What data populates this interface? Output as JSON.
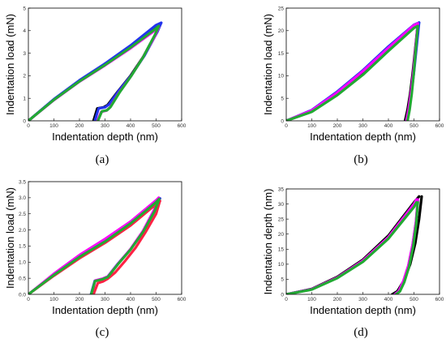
{
  "figure": {
    "panels": [
      {
        "label": "(a)"
      },
      {
        "label": "(b)"
      },
      {
        "label": "(c)"
      },
      {
        "label": "(d)"
      }
    ]
  },
  "chart_data": [
    {
      "type": "line",
      "panel_label": "(a)",
      "xlabel": "Indentation depth (nm)",
      "ylabel": "Indentation load (mN)",
      "xlim": [
        0,
        600
      ],
      "ylim": [
        0,
        5
      ],
      "xticks": [
        0,
        100,
        200,
        300,
        400,
        500,
        600
      ],
      "yticks": [
        0,
        1,
        2,
        3,
        4,
        5
      ],
      "grid": false,
      "series": [
        {
          "color": "#000000",
          "loading": {
            "x": [
              0,
              100,
              200,
              300,
              400,
              500,
              515
            ],
            "y": [
              0,
              0.95,
              1.78,
              2.52,
              3.32,
              4.2,
              4.3
            ]
          },
          "unloading": {
            "x": [
              515,
              500,
              450,
              400,
              350,
              310,
              295,
              270,
              255
            ],
            "y": [
              4.3,
              3.9,
              2.85,
              2.0,
              1.3,
              0.7,
              0.6,
              0.55,
              0
            ]
          }
        },
        {
          "color": "#2233ee",
          "loading": {
            "x": [
              0,
              100,
              200,
              300,
              400,
              500,
              520
            ],
            "y": [
              0,
              0.96,
              1.8,
              2.54,
              3.34,
              4.25,
              4.35
            ]
          },
          "unloading": {
            "x": [
              520,
              505,
              455,
              405,
              355,
              315,
              300,
              275,
              260
            ],
            "y": [
              4.35,
              3.95,
              2.9,
              2.05,
              1.35,
              0.72,
              0.6,
              0.55,
              0
            ]
          }
        },
        {
          "color": "#ff00ff",
          "loading": {
            "x": [
              0,
              100,
              200,
              300,
              400,
              500,
              510
            ],
            "y": [
              0,
              0.92,
              1.74,
              2.46,
              3.22,
              4.05,
              4.15
            ]
          },
          "unloading": {
            "x": [
              510,
              495,
              445,
              400,
              355,
              320,
              305,
              285,
              270
            ],
            "y": [
              4.15,
              3.75,
              2.75,
              1.95,
              1.25,
              0.6,
              0.45,
              0.4,
              0
            ]
          }
        },
        {
          "color": "#22aa33",
          "loading": {
            "x": [
              0,
              100,
              200,
              300,
              400,
              500,
              510
            ],
            "y": [
              0,
              0.93,
              1.75,
              2.48,
              3.25,
              4.1,
              4.2
            ]
          },
          "unloading": {
            "x": [
              510,
              495,
              448,
              402,
              358,
              322,
              308,
              288,
              272
            ],
            "y": [
              4.2,
              3.8,
              2.8,
              1.98,
              1.28,
              0.62,
              0.47,
              0.42,
              0
            ]
          }
        }
      ]
    },
    {
      "type": "line",
      "panel_label": "(b)",
      "xlabel": "Indentation depth (nm)",
      "ylabel": "Indentation load (mN)",
      "xlim": [
        0,
        600
      ],
      "ylim": [
        0,
        25
      ],
      "xticks": [
        0,
        100,
        200,
        300,
        400,
        500,
        600
      ],
      "yticks": [
        0,
        5,
        10,
        15,
        20,
        25
      ],
      "grid": false,
      "series": [
        {
          "color": "#000000",
          "loading": {
            "x": [
              0,
              100,
              200,
              300,
              400,
              500,
              515
            ],
            "y": [
              0,
              2.2,
              6.0,
              10.5,
              15.8,
              21.0,
              21.5
            ]
          },
          "unloading": {
            "x": [
              515,
              505,
              495,
              485,
              475,
              465
            ],
            "y": [
              21.5,
              16.0,
              10.5,
              6.0,
              2.5,
              0
            ]
          }
        },
        {
          "color": "#2233ee",
          "loading": {
            "x": [
              0,
              100,
              200,
              300,
              400,
              500,
              520
            ],
            "y": [
              0,
              2.4,
              6.5,
              11.2,
              16.5,
              21.3,
              21.8
            ]
          },
          "unloading": {
            "x": [
              520,
              510,
              500,
              490,
              480,
              470
            ],
            "y": [
              21.8,
              16.2,
              10.8,
              6.2,
              2.6,
              0
            ]
          }
        },
        {
          "color": "#ff00ff",
          "loading": {
            "x": [
              0,
              100,
              200,
              300,
              400,
              500,
              515
            ],
            "y": [
              0,
              2.3,
              6.3,
              11.0,
              16.2,
              21.2,
              21.6
            ]
          },
          "unloading": {
            "x": [
              515,
              506,
              497,
              488,
              479,
              470
            ],
            "y": [
              21.6,
              16.0,
              10.6,
              6.1,
              2.6,
              0
            ]
          }
        },
        {
          "color": "#22aa33",
          "loading": {
            "x": [
              0,
              100,
              200,
              300,
              400,
              500,
              515
            ],
            "y": [
              0,
              2.0,
              5.7,
              10.2,
              15.5,
              20.6,
              21.0
            ]
          },
          "unloading": {
            "x": [
              515,
              507,
              499,
              491,
              483,
              475
            ],
            "y": [
              21.0,
              15.8,
              10.4,
              5.9,
              2.4,
              0
            ]
          }
        }
      ]
    },
    {
      "type": "line",
      "panel_label": "(c)",
      "xlabel": "Indentation depth (nm)",
      "ylabel": "Indentation load (mN)",
      "xlim": [
        0,
        600
      ],
      "ylim": [
        0,
        3.5
      ],
      "xticks": [
        0,
        100,
        200,
        300,
        400,
        500,
        600
      ],
      "yticks": [
        0,
        0.5,
        1.0,
        1.5,
        2.0,
        2.5,
        3.0,
        3.5
      ],
      "grid": false,
      "series": [
        {
          "color": "#2233ee",
          "loading": {
            "x": [
              0,
              100,
              200,
              300,
              400,
              500,
              515
            ],
            "y": [
              0,
              0.62,
              1.18,
              1.66,
              2.22,
              2.88,
              2.98
            ]
          },
          "unloading": {
            "x": [
              515,
              495,
              450,
              400,
              350,
              310,
              290,
              260,
              245
            ],
            "y": [
              2.98,
              2.6,
              1.95,
              1.4,
              0.95,
              0.55,
              0.48,
              0.42,
              0
            ]
          }
        },
        {
          "color": "#ff00ff",
          "loading": {
            "x": [
              0,
              100,
              200,
              300,
              400,
              500,
              510
            ],
            "y": [
              0,
              0.64,
              1.22,
              1.72,
              2.26,
              2.92,
              3.0
            ]
          },
          "unloading": {
            "x": [
              510,
              492,
              448,
              400,
              352,
              312,
              292,
              262,
              248
            ],
            "y": [
              3.0,
              2.62,
              1.96,
              1.41,
              0.96,
              0.56,
              0.49,
              0.43,
              0
            ]
          }
        },
        {
          "color": "#ff2244",
          "loading": {
            "x": [
              0,
              100,
              200,
              300,
              400,
              500,
              515
            ],
            "y": [
              0,
              0.58,
              1.12,
              1.6,
              2.14,
              2.8,
              2.9
            ]
          },
          "unloading": {
            "x": [
              515,
              500,
              460,
              420,
              380,
              340,
              310,
              292,
              272,
              255
            ],
            "y": [
              2.9,
              2.5,
              1.95,
              1.45,
              1.05,
              0.68,
              0.48,
              0.4,
              0.35,
              0
            ]
          }
        },
        {
          "color": "#22aa33",
          "loading": {
            "x": [
              0,
              100,
              200,
              300,
              400,
              500,
              512
            ],
            "y": [
              0,
              0.6,
              1.16,
              1.64,
              2.2,
              2.86,
              2.96
            ]
          },
          "unloading": {
            "x": [
              512,
              494,
              449,
              400,
              351,
              311,
              291,
              261,
              246
            ],
            "y": [
              2.96,
              2.58,
              1.94,
              1.39,
              0.94,
              0.54,
              0.47,
              0.41,
              0
            ]
          }
        }
      ]
    },
    {
      "type": "line",
      "panel_label": "(d)",
      "xlabel": "Indentation depth (nm)",
      "ylabel": "Indentation depth (nm)",
      "xlim": [
        0,
        600
      ],
      "ylim": [
        0,
        35
      ],
      "xticks": [
        0,
        100,
        200,
        300,
        400,
        500,
        600
      ],
      "yticks": [
        0,
        5,
        10,
        15,
        20,
        25,
        30,
        35
      ],
      "grid": false,
      "series": [
        {
          "color": "#000000",
          "loading": {
            "x": [
              0,
              100,
              200,
              300,
              400,
              500,
              520
            ],
            "y": [
              0,
              1.8,
              5.8,
              11.5,
              19.5,
              30.5,
              32.5
            ]
          },
          "unloading": {
            "x": [
              530,
              520,
              505,
              485,
              460,
              435,
              415
            ],
            "y": [
              32.5,
              25.0,
              17.0,
              10.0,
              4.5,
              1.0,
              0
            ]
          }
        },
        {
          "color": "#2233ee",
          "loading": {
            "x": [
              0,
              100,
              200,
              300,
              400,
              500,
              510
            ],
            "y": [
              0,
              1.7,
              5.5,
              11.0,
              18.8,
              29.5,
              31.0
            ]
          },
          "unloading": {
            "x": [
              515,
              508,
              495,
              478,
              458,
              440,
              425
            ],
            "y": [
              31.0,
              24.0,
              16.5,
              9.5,
              4.2,
              1.0,
              0
            ]
          }
        },
        {
          "color": "#ff00ff",
          "loading": {
            "x": [
              0,
              100,
              200,
              300,
              400,
              500,
              510
            ],
            "y": [
              0,
              1.7,
              5.6,
              11.2,
              19.0,
              30.0,
              31.5
            ]
          },
          "unloading": {
            "x": [
              515,
              508,
              495,
              478,
              458,
              440,
              425
            ],
            "y": [
              31.5,
              24.2,
              16.6,
              9.6,
              4.3,
              1.0,
              0
            ]
          }
        },
        {
          "color": "#22aa33",
          "loading": {
            "x": [
              0,
              100,
              200,
              300,
              400,
              500,
              510
            ],
            "y": [
              0,
              1.6,
              5.4,
              10.8,
              18.5,
              29.0,
              30.5
            ]
          },
          "unloading": {
            "x": [
              515,
              509,
              497,
              481,
              462,
              445,
              430
            ],
            "y": [
              30.5,
              23.5,
              16.0,
              9.2,
              4.0,
              1.0,
              0
            ]
          }
        }
      ]
    }
  ]
}
